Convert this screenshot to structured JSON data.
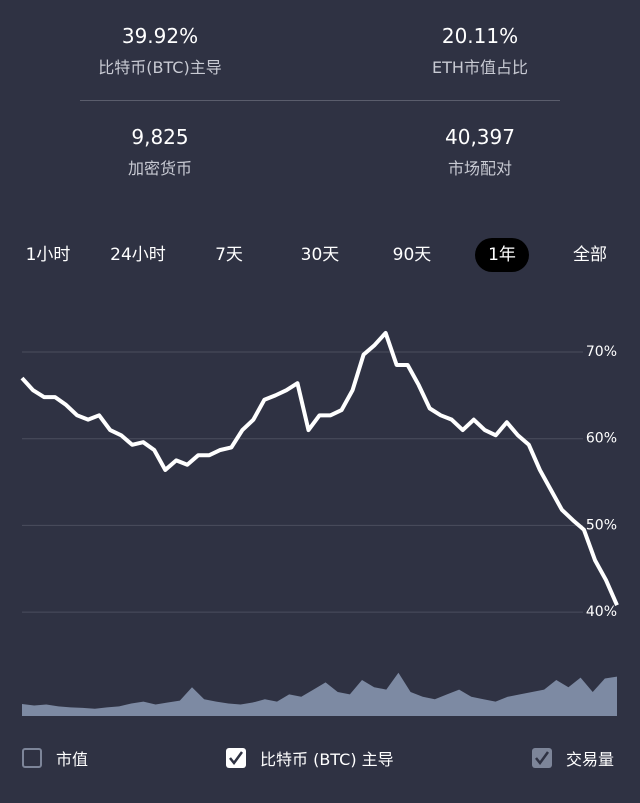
{
  "stats": [
    {
      "value": "39.92%",
      "label": "比特币(BTC)主导"
    },
    {
      "value": "20.11%",
      "label": "ETH市值占比"
    },
    {
      "value": "9,825",
      "label": "加密货币"
    },
    {
      "value": "40,397",
      "label": "市场配对"
    }
  ],
  "tabs": {
    "items": [
      "1小时",
      "24小时",
      "7天",
      "30天",
      "90天",
      "1年",
      "全部"
    ],
    "selected": 5
  },
  "chart_data": {
    "type": "line",
    "ylim": [
      39,
      76
    ],
    "yticks": [
      {
        "value": 40,
        "label": "40%"
      },
      {
        "value": 50,
        "label": "50%"
      },
      {
        "value": 60,
        "label": "60%"
      },
      {
        "value": 70,
        "label": "70%"
      }
    ],
    "grid": true,
    "series": [
      {
        "name": "比特币 (BTC) 主导",
        "color": "#ffffff",
        "values": [
          67.0,
          65.6,
          64.8,
          64.8,
          63.9,
          62.7,
          62.2,
          62.7,
          61.0,
          60.4,
          59.3,
          59.6,
          58.7,
          56.4,
          57.5,
          57.0,
          58.1,
          58.1,
          58.7,
          59.0,
          61.0,
          62.2,
          64.5,
          65.0,
          65.6,
          66.4,
          61.0,
          62.7,
          62.7,
          63.3,
          65.6,
          69.7,
          70.8,
          72.2,
          68.5,
          68.5,
          66.2,
          63.5,
          62.7,
          62.2,
          61.0,
          62.2,
          61.0,
          60.4,
          61.9,
          60.4,
          59.3,
          56.4,
          54.1,
          51.8,
          50.6,
          49.5,
          46.0,
          43.7,
          40.8
        ]
      },
      {
        "name": "交易量",
        "color": "#7d8aa3",
        "axis": "y2",
        "values": [
          25,
          22,
          24,
          20,
          18,
          17,
          15,
          18,
          20,
          26,
          30,
          24,
          28,
          32,
          60,
          35,
          30,
          26,
          24,
          28,
          35,
          30,
          45,
          40,
          55,
          70,
          50,
          45,
          75,
          60,
          55,
          90,
          50,
          40,
          35,
          45,
          55,
          40,
          35,
          30,
          40,
          45,
          50,
          55,
          75,
          60,
          80,
          50,
          78,
          82
        ]
      }
    ],
    "y2lim": [
      0,
      100
    ]
  },
  "checkboxes": [
    {
      "label": "市值",
      "checked": false
    },
    {
      "label": "比特币 (BTC) 主导",
      "checked": true
    },
    {
      "label": "交易量",
      "checked": true
    }
  ]
}
